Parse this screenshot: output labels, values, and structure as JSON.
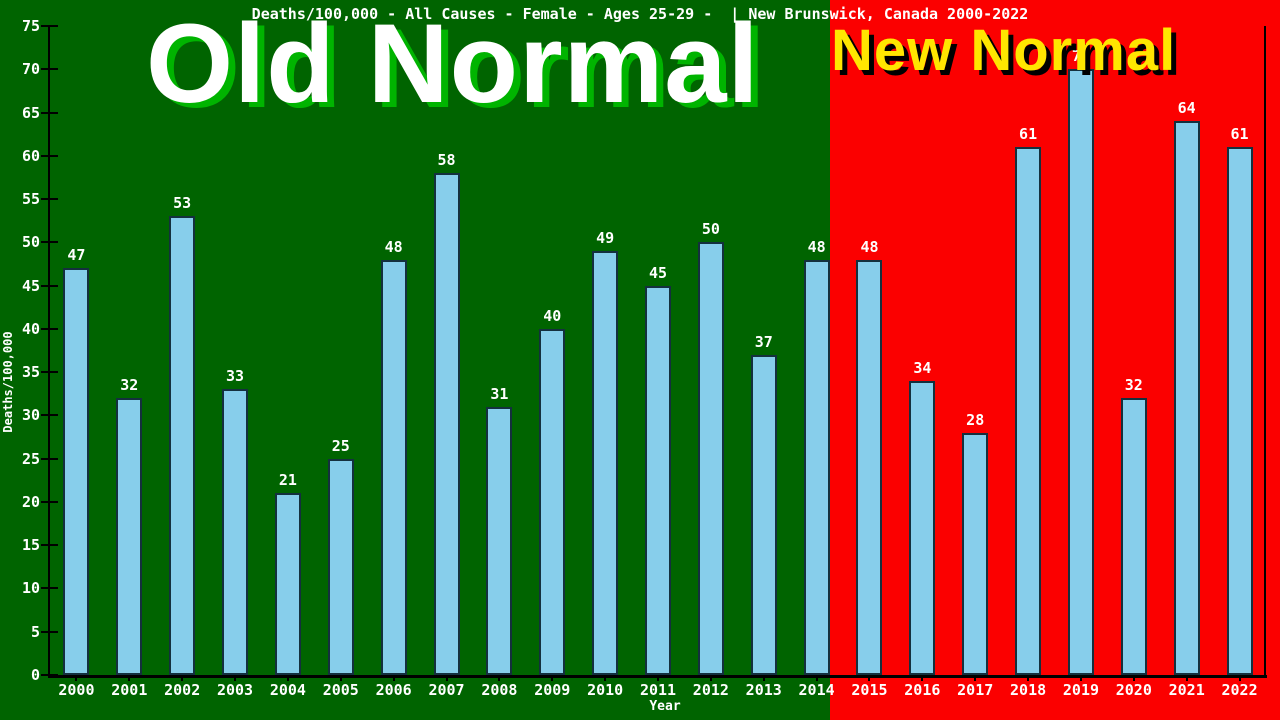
{
  "title": "Deaths/100,000 - All Causes - Female - Ages 25-29 -  | New Brunswick, Canada 2000-2022",
  "overlays": {
    "old_normal": {
      "label": "Old Normal",
      "text_color": "#ffffff",
      "shadow_color": "#00b400"
    },
    "new_normal": {
      "label": "New Normal",
      "text_color": "#ffe600",
      "shadow_color": "#000000"
    }
  },
  "chart_data": {
    "type": "bar",
    "title": "Deaths/100,000 - All Causes - Female - Ages 25-29 -  | New Brunswick, Canada 2000-2022",
    "xlabel": "Year",
    "ylabel": "Deaths/100,000",
    "categories": [
      "2000",
      "2001",
      "2002",
      "2003",
      "2004",
      "2005",
      "2006",
      "2007",
      "2008",
      "2009",
      "2010",
      "2011",
      "2012",
      "2013",
      "2014",
      "2015",
      "2016",
      "2017",
      "2018",
      "2019",
      "2020",
      "2021",
      "2022"
    ],
    "values": [
      47,
      32,
      53,
      33,
      21,
      25,
      48,
      58,
      31,
      40,
      49,
      45,
      50,
      37,
      48,
      48,
      34,
      28,
      61,
      70,
      32,
      64,
      61
    ],
    "ylim": [
      0,
      75
    ],
    "ytick_step": 5,
    "ytick_labels": [
      0,
      5,
      10,
      15,
      20,
      25,
      30,
      35,
      40,
      45,
      50,
      55,
      60,
      65,
      70,
      75
    ],
    "grid": false,
    "legend": "none",
    "bar_fill_color": "#87ceeb",
    "bar_border_color": "#14303e",
    "value_label_color": "#ffffff",
    "axis_color": "#000000",
    "text_color": "#ffffff",
    "background_old_era": "#006400",
    "background_new_era": "#fb0000",
    "era_split": {
      "old_era_last_year": "2014",
      "new_era_first_year": "2015"
    }
  }
}
